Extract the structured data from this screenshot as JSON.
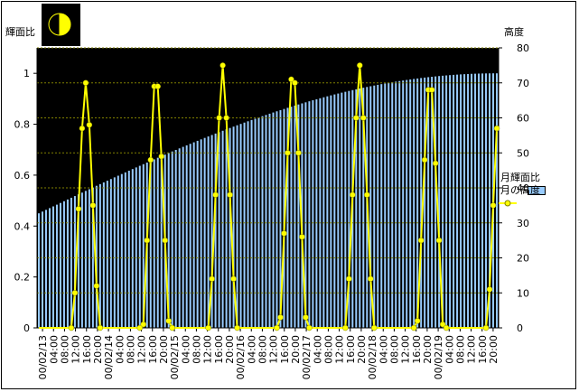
{
  "chart_data": {
    "type": "bar+line",
    "ylabel_left": "輝面比",
    "ylabel_right": "高度",
    "ylim_left": [
      0,
      1.1
    ],
    "ylim_right": [
      0,
      80
    ],
    "yticks_left": [
      "0",
      "0.2",
      "0.4",
      "0.6",
      "0.8",
      "1"
    ],
    "yticks_right": [
      "0",
      "10",
      "20",
      "30",
      "40",
      "50",
      "60",
      "70",
      "80"
    ],
    "x_tick_labels": [
      "00/02/13",
      "04:00",
      "08:00",
      "12:00",
      "16:00",
      "20:00",
      "00/02/14",
      "04:00",
      "08:00",
      "12:00",
      "16:00",
      "20:00",
      "00/02/15",
      "04:00",
      "08:00",
      "12:00",
      "16:00",
      "20:00",
      "00/02/16",
      "04:00",
      "08:00",
      "12:00",
      "16:00",
      "20:00",
      "00/02/17",
      "04:00",
      "08:00",
      "12:00",
      "16:00",
      "20:00",
      "00/02/18",
      "04:00",
      "08:00",
      "12:00",
      "16:00",
      "20:00",
      "00/02/19",
      "04:00",
      "08:00",
      "12:00",
      "16:00",
      "20:00"
    ],
    "illumination_start": 0.45,
    "illumination_end": 1.0,
    "series": [
      {
        "name": "月輝面比",
        "color": "#99ccff"
      },
      {
        "name": "月の高度",
        "color": "#ffff00"
      }
    ],
    "altitude_points": [
      [
        0,
        0
      ],
      [
        1,
        0
      ],
      [
        2,
        0
      ],
      [
        3,
        0
      ],
      [
        4,
        0
      ],
      [
        5,
        0
      ],
      [
        6,
        0
      ],
      [
        7,
        0
      ],
      [
        8,
        0
      ],
      [
        9,
        0
      ],
      [
        10,
        10
      ],
      [
        11,
        34
      ],
      [
        12,
        57
      ],
      [
        13,
        70
      ],
      [
        14,
        58
      ],
      [
        15,
        35
      ],
      [
        16,
        12
      ],
      [
        17,
        0
      ],
      [
        18,
        0
      ],
      [
        19,
        0
      ],
      [
        20,
        0
      ],
      [
        21,
        0
      ],
      [
        22,
        0
      ],
      [
        23,
        0
      ],
      [
        24,
        0
      ],
      [
        25,
        0
      ],
      [
        26,
        0
      ],
      [
        27,
        0
      ],
      [
        28,
        0
      ],
      [
        29,
        1
      ],
      [
        30,
        25
      ],
      [
        31,
        48
      ],
      [
        32,
        69
      ],
      [
        33,
        69
      ],
      [
        34,
        49
      ],
      [
        35,
        25
      ],
      [
        36,
        2
      ],
      [
        37,
        0
      ],
      [
        38,
        0
      ],
      [
        39,
        0
      ],
      [
        40,
        0
      ],
      [
        41,
        0
      ],
      [
        42,
        0
      ],
      [
        43,
        0
      ],
      [
        44,
        0
      ],
      [
        45,
        0
      ],
      [
        46,
        0
      ],
      [
        47,
        0
      ],
      [
        48,
        14
      ],
      [
        49,
        38
      ],
      [
        50,
        60
      ],
      [
        51,
        75
      ],
      [
        52,
        60
      ],
      [
        53,
        38
      ],
      [
        54,
        14
      ],
      [
        55,
        0
      ],
      [
        56,
        0
      ],
      [
        57,
        0
      ],
      [
        58,
        0
      ],
      [
        59,
        0
      ],
      [
        60,
        0
      ],
      [
        61,
        0
      ],
      [
        62,
        0
      ],
      [
        63,
        0
      ],
      [
        64,
        0
      ],
      [
        65,
        0
      ],
      [
        66,
        0
      ],
      [
        67,
        3
      ],
      [
        68,
        27
      ],
      [
        69,
        50
      ],
      [
        70,
        71
      ],
      [
        71,
        70
      ],
      [
        72,
        50
      ],
      [
        73,
        26
      ],
      [
        74,
        3
      ],
      [
        75,
        0
      ],
      [
        76,
        0
      ],
      [
        77,
        0
      ],
      [
        78,
        0
      ],
      [
        79,
        0
      ],
      [
        80,
        0
      ],
      [
        81,
        0
      ],
      [
        82,
        0
      ],
      [
        83,
        0
      ],
      [
        84,
        0
      ],
      [
        85,
        0
      ],
      [
        86,
        14
      ],
      [
        87,
        38
      ],
      [
        88,
        60
      ],
      [
        89,
        75
      ],
      [
        90,
        60
      ],
      [
        91,
        38
      ],
      [
        92,
        14
      ],
      [
        93,
        0
      ],
      [
        94,
        0
      ],
      [
        95,
        0
      ],
      [
        96,
        0
      ],
      [
        97,
        0
      ],
      [
        98,
        0
      ],
      [
        99,
        0
      ],
      [
        100,
        0
      ],
      [
        101,
        0
      ],
      [
        102,
        0
      ],
      [
        103,
        0
      ],
      [
        104,
        0
      ],
      [
        105,
        2
      ],
      [
        106,
        25
      ],
      [
        107,
        48
      ],
      [
        108,
        68
      ],
      [
        109,
        68
      ],
      [
        110,
        47
      ],
      [
        111,
        25
      ],
      [
        112,
        1
      ],
      [
        113,
        0
      ],
      [
        114,
        0
      ],
      [
        115,
        0
      ],
      [
        116,
        0
      ],
      [
        117,
        0
      ],
      [
        118,
        0
      ],
      [
        119,
        0
      ],
      [
        120,
        0
      ],
      [
        121,
        0
      ],
      [
        122,
        0
      ],
      [
        123,
        0
      ],
      [
        124,
        0
      ],
      [
        125,
        11
      ],
      [
        126,
        35
      ],
      [
        127,
        57
      ]
    ]
  },
  "legend": {
    "illum_label": "月輝面比",
    "alt_label": "月の高度"
  },
  "moon_icon": {
    "name": "half-moon-icon",
    "color": "#ffff00"
  },
  "colors": {
    "plot_bg": "#000000",
    "bar": "#99ccff",
    "line": "#ffff00",
    "grid": "#808000"
  }
}
